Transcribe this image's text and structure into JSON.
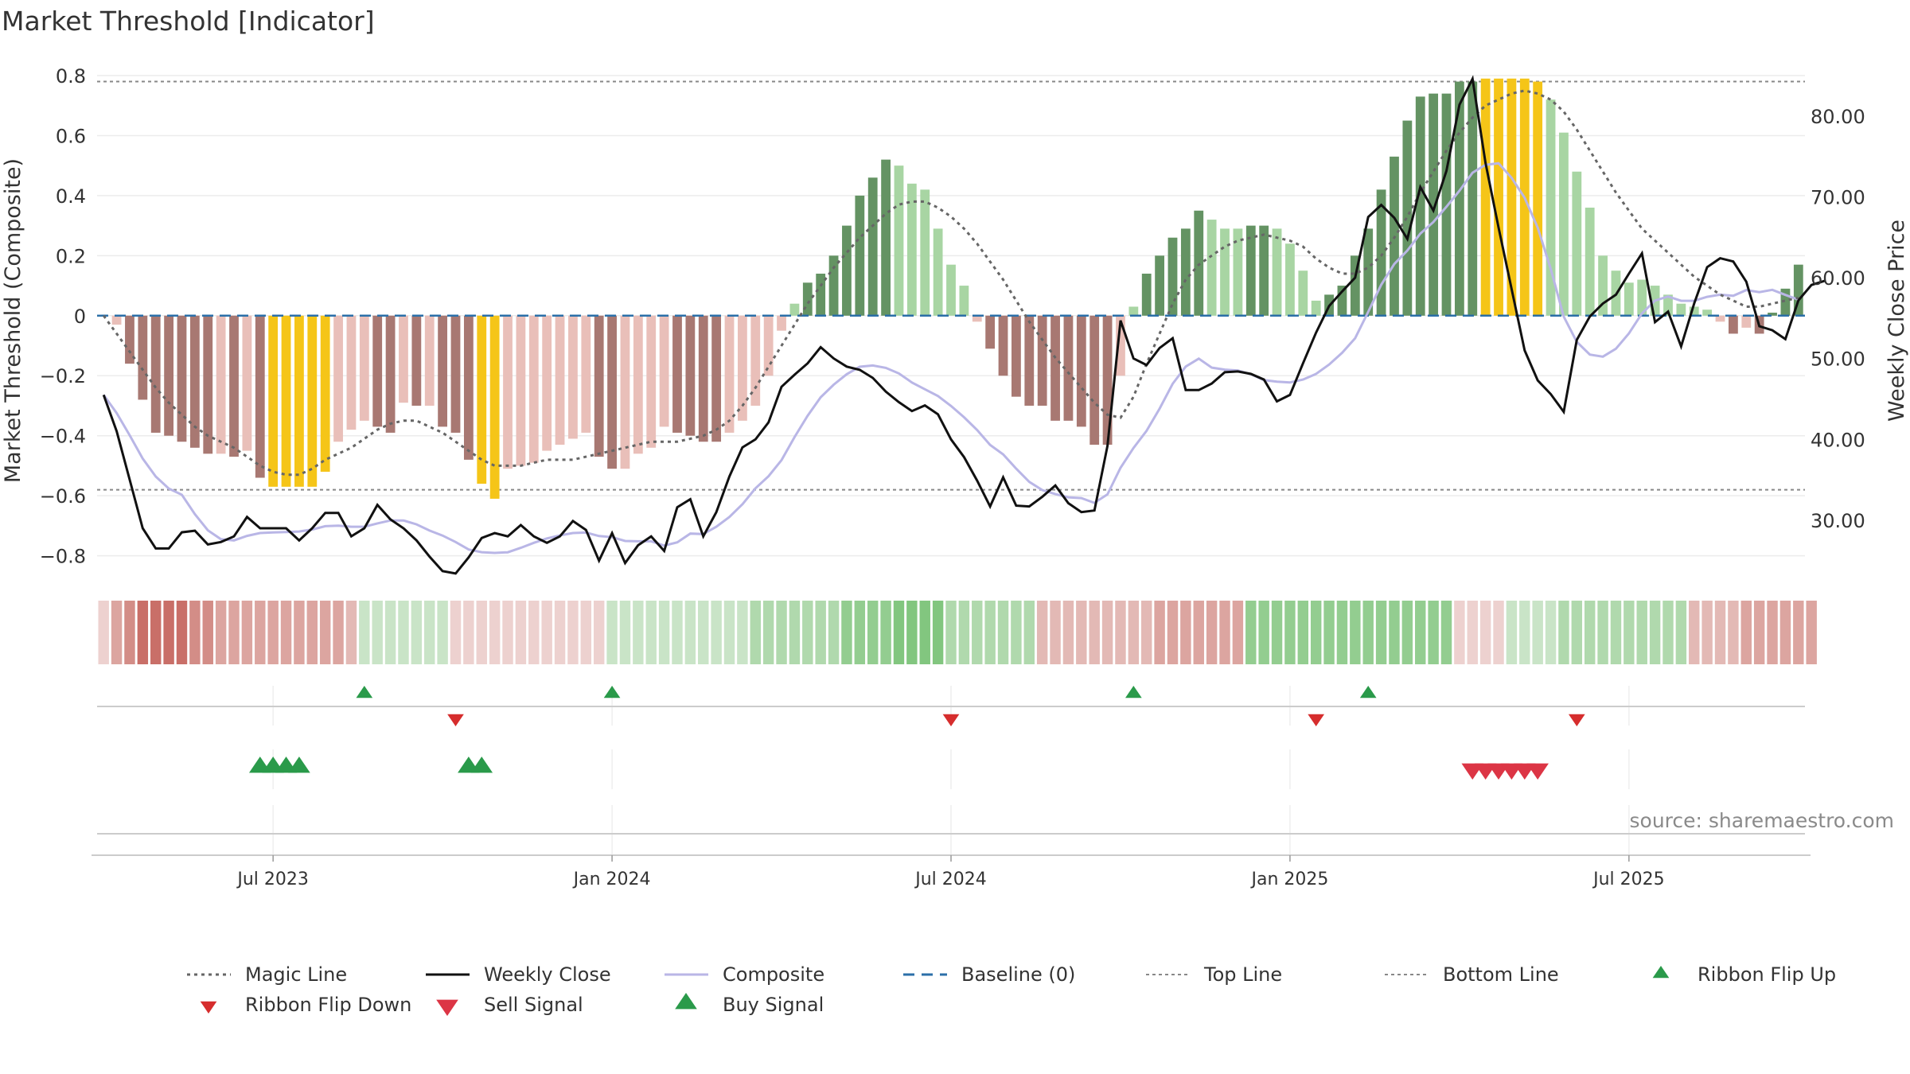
{
  "chart_data": {
    "type": "bar",
    "title": "Market Threshold [Indicator]",
    "ylabel_left": "Market Threshold (Composite)",
    "ylabel_right": "Weekly Close Price",
    "source": "source: sharemaestro.com",
    "ylim_left": [
      -0.87,
      0.8
    ],
    "ylim_right": [
      23.0,
      85.0
    ],
    "left_ticks": [
      "0.8",
      "0.6",
      "0.4",
      "0.2",
      "0",
      "−0.2",
      "−0.4",
      "−0.6",
      "−0.8"
    ],
    "left_tick_values": [
      0.8,
      0.6,
      0.4,
      0.2,
      0,
      -0.2,
      -0.4,
      -0.6,
      -0.8
    ],
    "right_ticks": [
      "80.00",
      "70.00",
      "60.00",
      "50.00",
      "40.00",
      "30.00"
    ],
    "right_tick_values": [
      80,
      70,
      60,
      50,
      40,
      30
    ],
    "x_ticks": [
      "Jul 2023",
      "Jan 2024",
      "Jul 2024",
      "Jan 2025",
      "Jul 2025"
    ],
    "x_tick_indices": [
      13,
      39,
      65,
      91,
      117
    ],
    "top_line": 0.78,
    "bottom_line": -0.58,
    "composite": [
      0.0,
      -0.03,
      -0.16,
      -0.28,
      -0.39,
      -0.4,
      -0.42,
      -0.44,
      -0.46,
      -0.46,
      -0.47,
      -0.45,
      -0.54,
      -0.57,
      -0.57,
      -0.57,
      -0.57,
      -0.52,
      -0.42,
      -0.38,
      -0.35,
      -0.37,
      -0.39,
      -0.29,
      -0.3,
      -0.3,
      -0.37,
      -0.39,
      -0.48,
      -0.56,
      -0.61,
      -0.51,
      -0.5,
      -0.49,
      -0.45,
      -0.43,
      -0.41,
      -0.39,
      -0.47,
      -0.51,
      -0.51,
      -0.46,
      -0.44,
      -0.37,
      -0.39,
      -0.4,
      -0.42,
      -0.42,
      -0.39,
      -0.35,
      -0.3,
      -0.2,
      -0.05,
      0.04,
      0.11,
      0.14,
      0.2,
      0.3,
      0.4,
      0.46,
      0.52,
      0.5,
      0.44,
      0.42,
      0.29,
      0.17,
      0.1,
      -0.02,
      -0.11,
      -0.2,
      -0.27,
      -0.3,
      -0.3,
      -0.35,
      -0.35,
      -0.37,
      -0.43,
      -0.43,
      -0.2,
      0.03,
      0.14,
      0.2,
      0.26,
      0.29,
      0.35,
      0.32,
      0.29,
      0.29,
      0.3,
      0.3,
      0.29,
      0.24,
      0.15,
      0.05,
      0.07,
      0.1,
      0.2,
      0.29,
      0.42,
      0.53,
      0.65,
      0.73,
      0.74,
      0.74,
      0.78,
      0.78,
      0.79,
      0.79,
      0.79,
      0.79,
      0.78,
      0.72,
      0.61,
      0.48,
      0.36,
      0.2,
      0.15,
      0.11,
      0.12,
      0.1,
      0.07,
      0.04,
      0.03,
      0.02,
      -0.02,
      -0.06,
      -0.04,
      -0.06,
      0.01,
      0.09,
      0.17
    ],
    "bar_colors": [
      "#e9bfb9",
      "#e9bfb9",
      "#a87872",
      "#a87872",
      "#a87872",
      "#a87872",
      "#a87872",
      "#a87872",
      "#a87872",
      "#e9bfb9",
      "#a87872",
      "#e9bfb9",
      "#a87872",
      "#f5c518",
      "#f5c518",
      "#f5c518",
      "#f5c518",
      "#f5c518",
      "#e9bfb9",
      "#e9bfb9",
      "#e9bfb9",
      "#a87872",
      "#a87872",
      "#e9bfb9",
      "#a87872",
      "#e9bfb9",
      "#a87872",
      "#a87872",
      "#a87872",
      "#f5c518",
      "#f5c518",
      "#e9bfb9",
      "#e9bfb9",
      "#e9bfb9",
      "#e9bfb9",
      "#e9bfb9",
      "#e9bfb9",
      "#e9bfb9",
      "#a87872",
      "#a87872",
      "#e9bfb9",
      "#e9bfb9",
      "#e9bfb9",
      "#e9bfb9",
      "#a87872",
      "#a87872",
      "#a87872",
      "#a87872",
      "#e9bfb9",
      "#e9bfb9",
      "#e9bfb9",
      "#e9bfb9",
      "#e9bfb9",
      "#a8d5a3",
      "#649363",
      "#649363",
      "#649363",
      "#649363",
      "#649363",
      "#649363",
      "#649363",
      "#a8d5a3",
      "#a8d5a3",
      "#a8d5a3",
      "#a8d5a3",
      "#a8d5a3",
      "#a8d5a3",
      "#e9bfb9",
      "#a87872",
      "#a87872",
      "#a87872",
      "#a87872",
      "#a87872",
      "#a87872",
      "#a87872",
      "#a87872",
      "#a87872",
      "#a87872",
      "#e9bfb9",
      "#a8d5a3",
      "#649363",
      "#649363",
      "#649363",
      "#649363",
      "#649363",
      "#a8d5a3",
      "#a8d5a3",
      "#a8d5a3",
      "#649363",
      "#649363",
      "#a8d5a3",
      "#a8d5a3",
      "#a8d5a3",
      "#a8d5a3",
      "#649363",
      "#649363",
      "#649363",
      "#649363",
      "#649363",
      "#649363",
      "#649363",
      "#649363",
      "#649363",
      "#649363",
      "#649363",
      "#649363",
      "#f5c518",
      "#f5c518",
      "#f5c518",
      "#f5c518",
      "#f5c518",
      "#a8d5a3",
      "#a8d5a3",
      "#a8d5a3",
      "#a8d5a3",
      "#a8d5a3",
      "#a8d5a3",
      "#a8d5a3",
      "#a8d5a3",
      "#a8d5a3",
      "#a8d5a3",
      "#a8d5a3",
      "#a8d5a3",
      "#a8d5a3",
      "#e9bfb9",
      "#a87872",
      "#e9bfb9",
      "#a87872",
      "#649363",
      "#649363",
      "#649363"
    ],
    "magic_line": [
      0.0,
      -0.06,
      -0.12,
      -0.18,
      -0.24,
      -0.29,
      -0.33,
      -0.37,
      -0.4,
      -0.42,
      -0.44,
      -0.47,
      -0.5,
      -0.52,
      -0.53,
      -0.53,
      -0.51,
      -0.48,
      -0.46,
      -0.44,
      -0.41,
      -0.38,
      -0.36,
      -0.35,
      -0.35,
      -0.37,
      -0.39,
      -0.42,
      -0.45,
      -0.48,
      -0.5,
      -0.5,
      -0.5,
      -0.49,
      -0.48,
      -0.48,
      -0.48,
      -0.47,
      -0.46,
      -0.45,
      -0.44,
      -0.43,
      -0.42,
      -0.42,
      -0.42,
      -0.41,
      -0.4,
      -0.38,
      -0.35,
      -0.3,
      -0.24,
      -0.17,
      -0.1,
      -0.03,
      0.04,
      0.1,
      0.16,
      0.21,
      0.26,
      0.3,
      0.34,
      0.37,
      0.38,
      0.38,
      0.36,
      0.33,
      0.29,
      0.24,
      0.18,
      0.12,
      0.05,
      -0.02,
      -0.08,
      -0.14,
      -0.19,
      -0.24,
      -0.29,
      -0.33,
      -0.34,
      -0.27,
      -0.16,
      -0.06,
      0.04,
      0.12,
      0.17,
      0.2,
      0.23,
      0.25,
      0.26,
      0.27,
      0.26,
      0.25,
      0.23,
      0.19,
      0.16,
      0.14,
      0.14,
      0.16,
      0.2,
      0.26,
      0.33,
      0.41,
      0.48,
      0.55,
      0.61,
      0.66,
      0.7,
      0.72,
      0.74,
      0.75,
      0.74,
      0.72,
      0.68,
      0.62,
      0.55,
      0.48,
      0.41,
      0.35,
      0.29,
      0.25,
      0.21,
      0.17,
      0.13,
      0.1,
      0.07,
      0.05,
      0.03,
      0.03,
      0.04,
      0.05,
      0.06
    ],
    "weekly_close": [
      45.5,
      41.0,
      35.0,
      29.0,
      26.5,
      26.5,
      28.5,
      28.7,
      27.0,
      27.3,
      28.0,
      30.4,
      29.0,
      29.0,
      29.0,
      27.5,
      29.0,
      30.9,
      30.9,
      28.0,
      29.0,
      31.9,
      30.1,
      29.0,
      27.5,
      25.5,
      23.7,
      23.4,
      25.4,
      27.8,
      28.4,
      28.0,
      29.4,
      28.0,
      27.2,
      28.0,
      29.9,
      28.8,
      25.0,
      28.4,
      24.7,
      26.9,
      28.0,
      26.2,
      31.6,
      32.6,
      28.0,
      31.0,
      35.4,
      39.0,
      40.0,
      42.1,
      46.5,
      48.0,
      49.4,
      51.4,
      50.0,
      49.0,
      48.6,
      47.6,
      45.9,
      44.6,
      43.5,
      44.2,
      43.1,
      40.0,
      37.8,
      34.9,
      31.7,
      35.3,
      31.8,
      31.7,
      32.9,
      34.3,
      32.1,
      31.0,
      31.2,
      39.2,
      54.7,
      50.0,
      49.2,
      51.3,
      52.5,
      46.1,
      46.1,
      46.9,
      48.3,
      48.4,
      48.1,
      47.4,
      44.7,
      45.5,
      49.4,
      53.2,
      56.5,
      58.3,
      60.0,
      67.5,
      69.0,
      67.4,
      64.8,
      71.2,
      68.3,
      73.2,
      81.4,
      84.6,
      74.2,
      66.2,
      58.6,
      51.0,
      47.3,
      45.6,
      43.4,
      52.3,
      55.2,
      56.8,
      57.9,
      60.5,
      63.0,
      54.5,
      55.8,
      51.5,
      56.8,
      61.3,
      62.4,
      62.0,
      59.5,
      54.0,
      53.5,
      52.4,
      57.2,
      59.1,
      59.6
    ],
    "ribbon_colors": [
      "#edd1cf",
      "#dca5a0",
      "#d38d87",
      "#c96f68",
      "#c96f68",
      "#c96f68",
      "#c96f68",
      "#d38d87",
      "#d38d87",
      "#dca5a0",
      "#dca5a0",
      "#dca5a0",
      "#dca5a0",
      "#dca5a0",
      "#dca5a0",
      "#dca5a0",
      "#dca5a0",
      "#dca5a0",
      "#dca5a0",
      "#e3b9b5",
      "#c9e4c7",
      "#c9e4c7",
      "#c9e4c7",
      "#c9e4c7",
      "#c9e4c7",
      "#c9e4c7",
      "#c9e4c7",
      "#edd1cf",
      "#edd1cf",
      "#edd1cf",
      "#edd1cf",
      "#edd1cf",
      "#edd1cf",
      "#edd1cf",
      "#edd1cf",
      "#edd1cf",
      "#edd1cf",
      "#edd1cf",
      "#edd1cf",
      "#c9e4c7",
      "#c9e4c7",
      "#c9e4c7",
      "#c9e4c7",
      "#c9e4c7",
      "#c9e4c7",
      "#c9e4c7",
      "#c9e4c7",
      "#c9e4c7",
      "#c9e4c7",
      "#c9e4c7",
      "#b0d9ad",
      "#b0d9ad",
      "#b0d9ad",
      "#b0d9ad",
      "#b0d9ad",
      "#b0d9ad",
      "#b0d9ad",
      "#93cd90",
      "#93cd90",
      "#93cd90",
      "#93cd90",
      "#82c67f",
      "#82c67f",
      "#82c67f",
      "#82c67f",
      "#b0d9ad",
      "#b0d9ad",
      "#b0d9ad",
      "#b0d9ad",
      "#b0d9ad",
      "#b0d9ad",
      "#b0d9ad",
      "#e3b9b5",
      "#e3b9b5",
      "#e3b9b5",
      "#e3b9b5",
      "#e3b9b5",
      "#e3b9b5",
      "#e3b9b5",
      "#e3b9b5",
      "#e3b9b5",
      "#dca5a0",
      "#dca5a0",
      "#dca5a0",
      "#dca5a0",
      "#dca5a0",
      "#dca5a0",
      "#dca5a0",
      "#93cd90",
      "#93cd90",
      "#93cd90",
      "#93cd90",
      "#93cd90",
      "#93cd90",
      "#93cd90",
      "#93cd90",
      "#93cd90",
      "#93cd90",
      "#93cd90",
      "#93cd90",
      "#93cd90",
      "#93cd90",
      "#93cd90",
      "#93cd90",
      "#edd1cf",
      "#edd1cf",
      "#edd1cf",
      "#edd1cf",
      "#c9e4c7",
      "#c9e4c7",
      "#c9e4c7",
      "#c9e4c7",
      "#b0d9ad",
      "#b0d9ad",
      "#b0d9ad",
      "#b0d9ad",
      "#b0d9ad",
      "#b0d9ad",
      "#b0d9ad",
      "#b0d9ad",
      "#b0d9ad",
      "#b0d9ad",
      "#e3b9b5",
      "#e3b9b5",
      "#e3b9b5",
      "#e3b9b5",
      "#dca5a0",
      "#dca5a0",
      "#dca5a0",
      "#dca5a0",
      "#dca5a0",
      "#dca5a0"
    ],
    "ribbon_flip_up": [
      20,
      39,
      79,
      97
    ],
    "ribbon_flip_down": [
      27,
      65,
      93,
      113
    ],
    "buy_signal": [
      12,
      13,
      14,
      15,
      28,
      29
    ],
    "sell_signal": [
      105,
      106,
      107,
      108,
      109,
      110
    ],
    "legend": [
      {
        "label": "Magic Line",
        "style": "dotted",
        "color": "#666666"
      },
      {
        "label": "Weekly Close",
        "style": "solid",
        "color": "#111111"
      },
      {
        "label": "Composite",
        "style": "solid",
        "color": "#b9b6e6"
      },
      {
        "label": "Baseline (0)",
        "style": "dashed",
        "color": "#2b6fa8"
      },
      {
        "label": "Top Line",
        "style": "dashed-thin",
        "color": "#888888"
      },
      {
        "label": "Bottom Line",
        "style": "dashed-thin",
        "color": "#888888"
      },
      {
        "label": "Ribbon Flip Up",
        "style": "marker-up",
        "color": "#2a9a4a"
      },
      {
        "label": "Ribbon Flip Down",
        "style": "marker-down",
        "color": "#d62d2d"
      },
      {
        "label": "Sell Signal",
        "style": "marker-down-large",
        "color": "#dc3545"
      },
      {
        "label": "Buy Signal",
        "style": "marker-up-large",
        "color": "#2a9a4a"
      }
    ],
    "legend_placement": "bottom",
    "grid": true
  }
}
